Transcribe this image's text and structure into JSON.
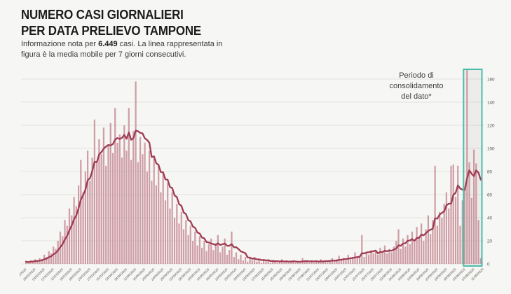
{
  "header": {
    "title_line1": "NUMERO CASI GIORNALIERI",
    "title_line2": "PER DATA PRELIEVO TAMPONE",
    "subtitle_prefix": "Informazione nota per ",
    "subtitle_bold": "6.449",
    "subtitle_suffix": " casi. La linea rappresentata in figura è la media mobile per 7 giorni consecutivi."
  },
  "annotation": {
    "line1": "Periodo di",
    "line2": "consolidamento",
    "line3": "del dato*"
  },
  "colors": {
    "background": "#f6f6f4",
    "bar": "#c78d97",
    "line": "#a03b52",
    "grid": "#e2e1df",
    "tick_text": "#54524e",
    "box_border": "#4dbcab",
    "box_fill": "rgba(70,70,70,0.055)"
  },
  "chart_data": {
    "type": "bar",
    "title": "NUMERO CASI GIORNALIERI PER DATA PRELIEVO TAMPONE",
    "subtitle": "Informazione nota per 6.449 casi. La linea rappresentata in figura è la media mobile per 7 giorni consecutivi.",
    "y_axis_position": "right",
    "grid": true,
    "ylim": [
      0,
      160
    ],
    "y_ticks": [
      0,
      20,
      40,
      60,
      80,
      100,
      120,
      140,
      160
    ],
    "x_tick_interval_days": 4,
    "x_tick_labels": [
      "24/02/2020",
      "28/02/2020",
      "03/03/2020",
      "07/03/2020",
      "11/03/2020",
      "15/03/2020",
      "19/03/2020",
      "23/03/2020",
      "27/03/2020",
      "31/03/2020",
      "04/04/2020",
      "08/04/2020",
      "12/04/2020",
      "16/04/2020",
      "20/04/2020",
      "24/04/2020",
      "28/04/2020",
      "02/05/2020",
      "06/05/2020",
      "10/05/2020",
      "14/05/2020",
      "18/05/2020",
      "22/05/2020",
      "26/05/2020",
      "30/05/2020",
      "03/06/2020",
      "07/06/2020",
      "11/06/2020",
      "15/06/2020",
      "19/06/2020",
      "23/06/2020",
      "27/06/2020",
      "01/07/2020",
      "05/07/2020",
      "09/07/2020",
      "13/07/2020",
      "17/07/2020",
      "21/07/2020",
      "25/07/2020",
      "29/07/2020",
      "02/08/2020",
      "06/08/2020",
      "10/08/2020",
      "14/08/2020",
      "18/08/2020",
      "22/08/2020",
      "26/08/2020",
      "30/08/2020",
      "03/09/2020",
      "07/09/2020",
      "11/09/2020"
    ],
    "values": [
      2,
      1,
      3,
      2,
      4,
      3,
      5,
      4,
      8,
      6,
      11,
      9,
      15,
      13,
      20,
      28,
      24,
      38,
      33,
      48,
      42,
      58,
      50,
      68,
      90,
      62,
      80,
      98,
      72,
      92,
      125,
      88,
      108,
      95,
      118,
      85,
      102,
      122,
      96,
      135,
      105,
      112,
      92,
      120,
      98,
      135,
      90,
      115,
      158,
      88,
      110,
      95,
      105,
      80,
      98,
      72,
      92,
      68,
      85,
      62,
      78,
      55,
      70,
      48,
      62,
      40,
      52,
      35,
      45,
      30,
      38,
      25,
      33,
      20,
      28,
      16,
      24,
      14,
      20,
      11,
      17,
      22,
      12,
      18,
      25,
      10,
      15,
      22,
      8,
      12,
      28,
      6,
      10,
      4,
      8,
      3,
      6,
      2,
      5,
      3,
      6,
      2,
      4,
      1,
      3,
      2,
      4,
      1,
      3,
      2,
      1,
      2,
      4,
      1,
      3,
      1,
      2,
      3,
      1,
      2,
      1,
      5,
      2,
      3,
      1,
      2,
      1,
      3,
      2,
      4,
      2,
      3,
      1,
      3,
      5,
      2,
      4,
      7,
      3,
      5,
      3,
      8,
      4,
      6,
      10,
      5,
      7,
      25,
      6,
      10,
      8,
      12,
      9,
      11,
      8,
      14,
      10,
      16,
      9,
      13,
      10,
      15,
      20,
      30,
      13,
      22,
      15,
      25,
      17,
      28,
      19,
      32,
      22,
      35,
      20,
      30,
      42,
      26,
      38,
      85,
      33,
      45,
      40,
      52,
      62,
      48,
      85,
      86,
      58,
      85,
      33,
      55,
      65,
      168,
      88,
      57,
      99,
      87,
      38,
      5
    ],
    "ma_window_days": 7,
    "ma_tail": [
      64,
      74,
      81,
      78,
      76,
      81,
      79,
      73
    ],
    "consolidation_start_index": 192
  }
}
